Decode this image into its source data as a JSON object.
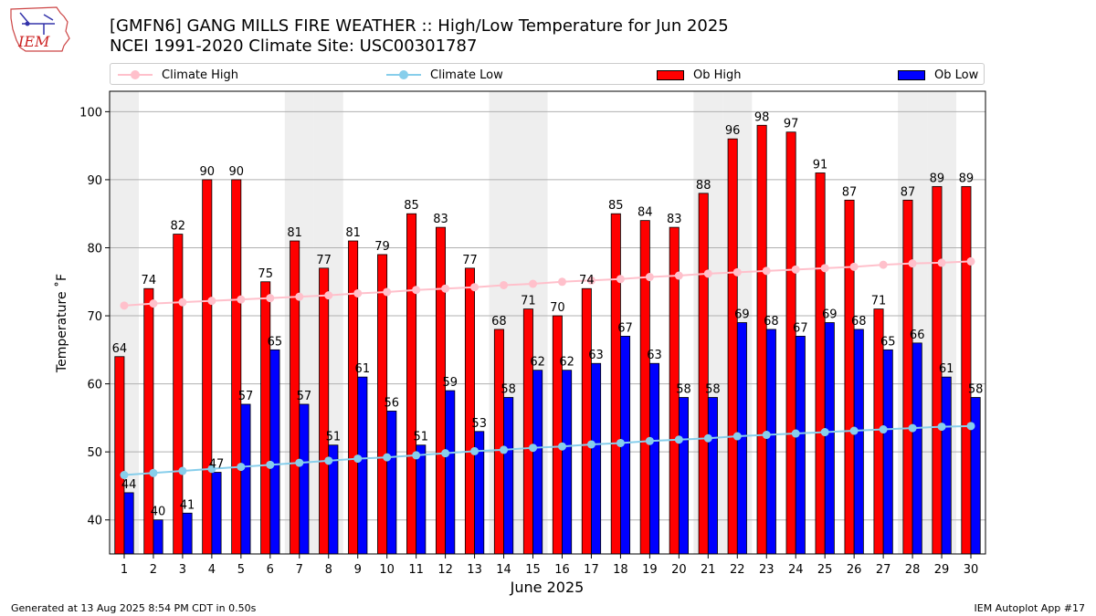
{
  "title_line1": "[GMFN6] GANG MILLS FIRE WEATHER :: High/Low Temperature for Jun 2025",
  "title_line2": "NCEI 1991-2020 Climate Site: USC00301787",
  "logo_text": "IEM",
  "footer": {
    "left": "Generated at 13 Aug 2025 8:54 PM CDT in 0.50s",
    "right": "IEM Autoplot App #17"
  },
  "legend_position": "top, above plot, spanning full width",
  "chart_data": {
    "type": "bar",
    "title": "[GMFN6] GANG MILLS FIRE WEATHER :: High/Low Temperature for Jun 2025",
    "xlabel": "June 2025",
    "ylabel": "Temperature ˚F",
    "ylim": [
      35,
      103
    ],
    "yticks": [
      40,
      50,
      60,
      70,
      80,
      90,
      100
    ],
    "grid": true,
    "weekend_shading": true,
    "weekend_days": [
      1,
      7,
      8,
      14,
      15,
      21,
      22,
      28,
      29
    ],
    "x": [
      1,
      2,
      3,
      4,
      5,
      6,
      7,
      8,
      9,
      10,
      11,
      12,
      13,
      14,
      15,
      16,
      17,
      18,
      19,
      20,
      21,
      22,
      23,
      24,
      25,
      26,
      27,
      28,
      29,
      30
    ],
    "series": [
      {
        "name": "Climate High",
        "kind": "line",
        "color": "#ffc0cb",
        "values": [
          71.5,
          71.8,
          72.0,
          72.2,
          72.4,
          72.6,
          72.8,
          73.0,
          73.3,
          73.5,
          73.8,
          74.0,
          74.2,
          74.5,
          74.7,
          75.0,
          75.2,
          75.4,
          75.7,
          75.9,
          76.2,
          76.4,
          76.6,
          76.8,
          77.0,
          77.2,
          77.5,
          77.7,
          77.8,
          78.0
        ]
      },
      {
        "name": "Climate Low",
        "kind": "line",
        "color": "#87ceeb",
        "values": [
          46.6,
          46.9,
          47.2,
          47.5,
          47.8,
          48.1,
          48.4,
          48.7,
          49.0,
          49.2,
          49.5,
          49.8,
          50.1,
          50.3,
          50.6,
          50.8,
          51.1,
          51.3,
          51.6,
          51.8,
          52.0,
          52.3,
          52.5,
          52.7,
          52.9,
          53.1,
          53.3,
          53.5,
          53.7,
          53.8
        ]
      },
      {
        "name": "Ob High",
        "kind": "bar",
        "color": "#ff0000",
        "values": [
          64,
          74,
          82,
          90,
          90,
          75,
          81,
          77,
          81,
          79,
          85,
          83,
          77,
          68,
          71,
          70,
          74,
          85,
          84,
          83,
          88,
          96,
          98,
          97,
          91,
          87,
          71,
          87,
          89,
          89
        ]
      },
      {
        "name": "Ob Low",
        "kind": "bar",
        "color": "#0000ff",
        "values": [
          44,
          40,
          41,
          47,
          57,
          65,
          57,
          51,
          61,
          56,
          51,
          59,
          53,
          58,
          62,
          62,
          63,
          67,
          63,
          58,
          58,
          69,
          68,
          67,
          69,
          68,
          65,
          66,
          61,
          58
        ]
      }
    ]
  }
}
